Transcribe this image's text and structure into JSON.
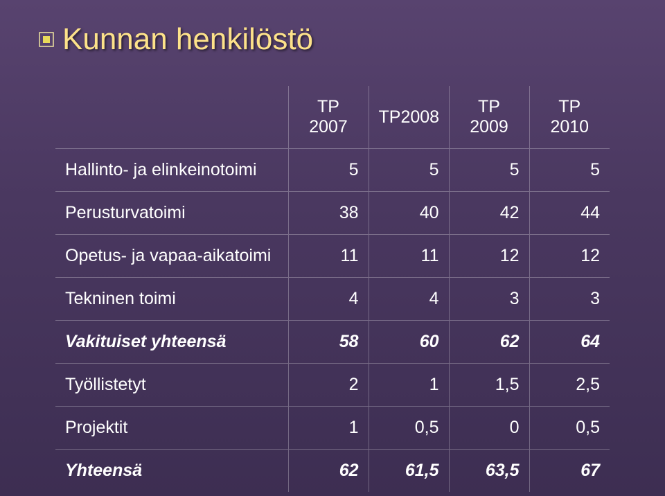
{
  "title": "Kunnan henkilöstö",
  "bullet_colors": {
    "outer": "#f0e6a0",
    "inner": "#e8d95a"
  },
  "headers": [
    "",
    "TP 2007",
    "TP2008",
    "TP 2009",
    "TP 2010"
  ],
  "rows": [
    {
      "label": "Hallinto- ja elinkeinotoimi",
      "vals": [
        "5",
        "5",
        "5",
        "5"
      ],
      "emph": false
    },
    {
      "label": "Perusturvatoimi",
      "vals": [
        "38",
        "40",
        "42",
        "44"
      ],
      "emph": false
    },
    {
      "label": "Opetus- ja vapaa-aikatoimi",
      "vals": [
        "11",
        "11",
        "12",
        "12"
      ],
      "emph": false
    },
    {
      "label": "Tekninen toimi",
      "vals": [
        "4",
        "4",
        "3",
        "3"
      ],
      "emph": false
    },
    {
      "label": "Vakituiset yhteensä",
      "vals": [
        "58",
        "60",
        "62",
        "64"
      ],
      "emph": true
    },
    {
      "label": "Työllistetyt",
      "vals": [
        "2",
        "1",
        "1,5",
        "2,5"
      ],
      "emph": false
    },
    {
      "label": "Projektit",
      "vals": [
        "1",
        "0,5",
        "0",
        "0,5"
      ],
      "emph": false
    },
    {
      "label": "Yhteensä",
      "vals": [
        "62",
        "61,5",
        "63,5",
        "67"
      ],
      "emph": true
    }
  ]
}
